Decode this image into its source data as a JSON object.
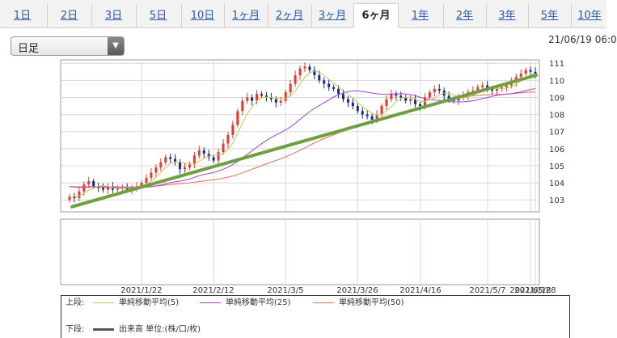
{
  "tabs": [
    {
      "label": "1日"
    },
    {
      "label": "2日"
    },
    {
      "label": "3日"
    },
    {
      "label": "5日"
    },
    {
      "label": "10日"
    },
    {
      "label": "1ヶ月"
    },
    {
      "label": "2ヶ月"
    },
    {
      "label": "3ヶ月"
    },
    {
      "label": "6ヶ月",
      "active": true
    },
    {
      "label": "1年"
    },
    {
      "label": "2年"
    },
    {
      "label": "3年"
    },
    {
      "label": "5年"
    },
    {
      "label": "10年"
    }
  ],
  "period_select": {
    "value": "日足"
  },
  "datetime": "21/06/19 06:0",
  "colors": {
    "up": "#e33b2f",
    "down": "#1a2a8a",
    "ma5": "#c8c85a",
    "ma25": "#a040d0",
    "ma50": "#e07050",
    "trend": "#6fa040"
  },
  "chart_data": {
    "type": "candlestick",
    "y_ticks": [
      "111",
      "110",
      "109",
      "108",
      "107",
      "106",
      "105",
      "104",
      "103"
    ],
    "ylim": [
      102.3,
      111.2
    ],
    "x_ticks": [
      "2021/1/22",
      "2021/2/12",
      "2021/3/5",
      "2021/3/26",
      "2021/4/16",
      "2021/5/7",
      "2021/5/28",
      "2021/6/18"
    ],
    "grid": true,
    "closes": [
      103.2,
      103.1,
      103.5,
      103.9,
      104.1,
      103.8,
      103.7,
      103.6,
      103.8,
      103.6,
      103.7,
      103.7,
      103.6,
      103.7,
      103.8,
      104.0,
      104.3,
      104.6,
      104.9,
      105.2,
      105.5,
      105.4,
      105.2,
      104.8,
      104.9,
      105.1,
      105.6,
      105.9,
      105.7,
      105.5,
      105.3,
      105.8,
      106.3,
      106.8,
      107.4,
      108.2,
      108.8,
      109.0,
      108.8,
      109.2,
      109.1,
      109.0,
      108.9,
      108.7,
      108.8,
      109.3,
      109.8,
      110.3,
      110.7,
      110.8,
      110.6,
      110.3,
      110.0,
      109.8,
      109.6,
      109.5,
      109.2,
      108.9,
      108.7,
      108.5,
      108.2,
      108.0,
      107.9,
      107.7,
      108.0,
      108.5,
      108.9,
      109.2,
      109.1,
      109.0,
      108.8,
      108.9,
      108.6,
      108.5,
      109.0,
      109.3,
      109.5,
      109.4,
      109.1,
      108.9,
      108.8,
      109.0,
      109.1,
      109.3,
      109.4,
      109.6,
      109.7,
      109.5,
      109.4,
      109.5,
      109.6,
      109.7,
      109.9,
      110.2,
      110.4,
      110.6,
      110.5,
      110.3
    ],
    "ma25_start": 103.8,
    "ma50_start": 103.8,
    "trendline": [
      102.6,
      110.3
    ],
    "legend": {
      "upper_label": "上段:",
      "lower_label": "下段:",
      "series": [
        {
          "name": "単純移動平均(5)"
        },
        {
          "name": "単純移動平均(25)"
        },
        {
          "name": "単純移動平均(50)"
        }
      ],
      "volume": "出来高 単位:(株/口/枚)"
    }
  }
}
